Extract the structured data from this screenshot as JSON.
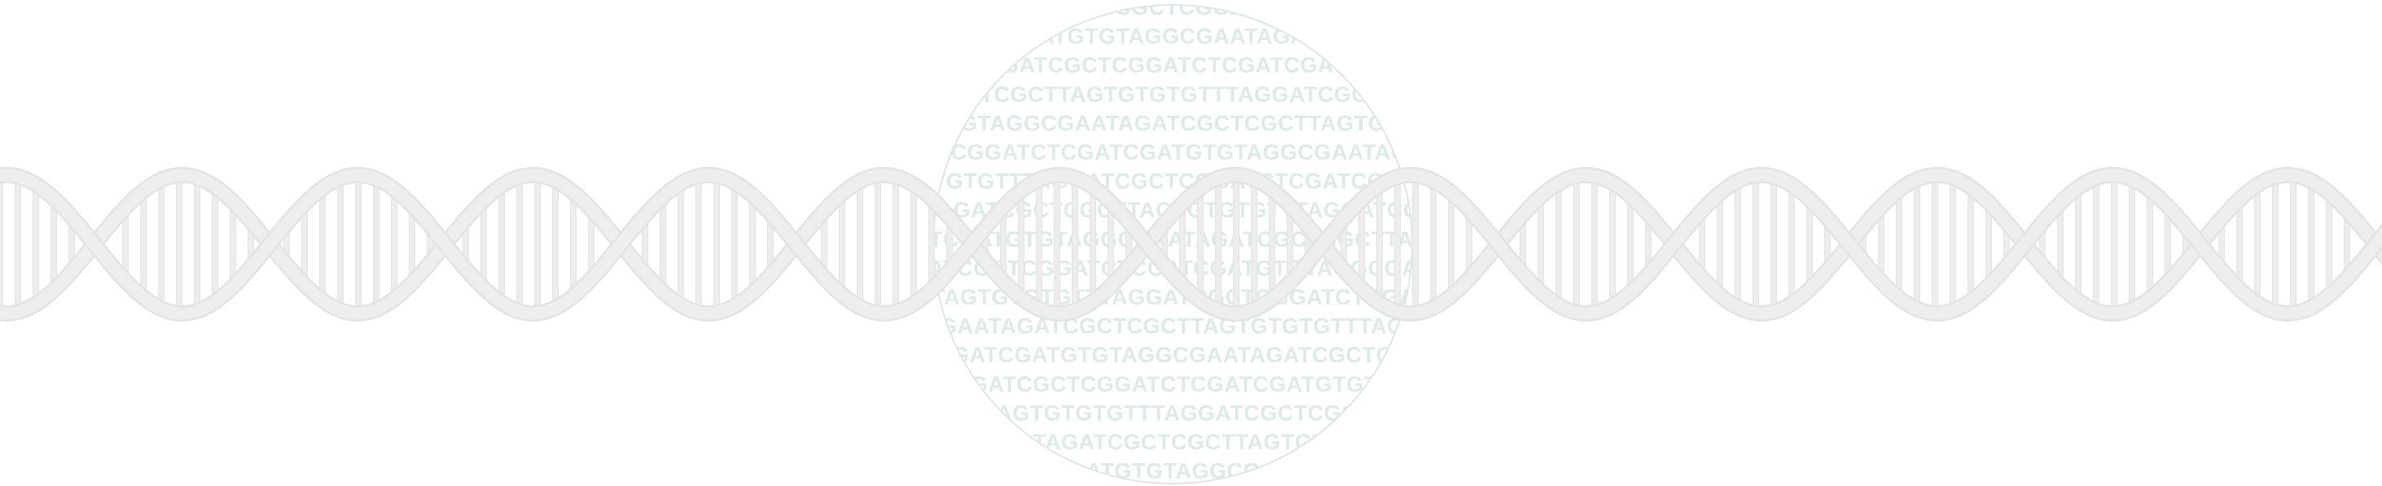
{
  "illustration": {
    "name": "DNA double helix with sequence lens",
    "colors": {
      "background": "#ffffff",
      "helix_fill": "#eeeeef",
      "helix_edge": "#e3e3e4",
      "rung": "#ededee",
      "lens_border": "#dfe6e3",
      "lens_text": "#dcebe6"
    },
    "sequence_lines": [
      "GATCGATCGCTCGGATCTCGA",
      "ATCGATGTGTAGGCGAATAGATCGC",
      "AGGATCGCTCGGATCTCGATCGATGT",
      "CTCGCTTAGTGTGTGTTTAGGATCGCT",
      "TGTAGGCGAATAGATCGCTCGCTTAGTGT",
      "CTCGGATCTCGATCGATGTGTAGGCGAATAGA",
      "TGTGTTTAGGATCGCTCGGATCTCGATCGAT",
      "TAGATCGCTCGCTTAGTGTGTGTTTAGGATCG",
      "ATCGATGTGTAGGCGAATAGATCGCTCGCTTAG",
      "GATCGCTCGGATCTCGATCGATGTGTAGGCGAA",
      "TTAGTGTGTGTTTAGGATCGCTCGGATCTCGAT",
      "CGAATAGATCGCTCGCTTAGTGTGTGTTTAGG",
      "CGATCGATGTGTAGGCGAATAGATCGCTCG",
      "GGATCGCTCGGATCTCGATCGATGTGTA",
      "TTAGTGTGTGTTTAGGATCGCTCGGA",
      "AATAGATCGCTCGCTTAGTGTG",
      "CGATGTGTAGGCGAA"
    ]
  }
}
